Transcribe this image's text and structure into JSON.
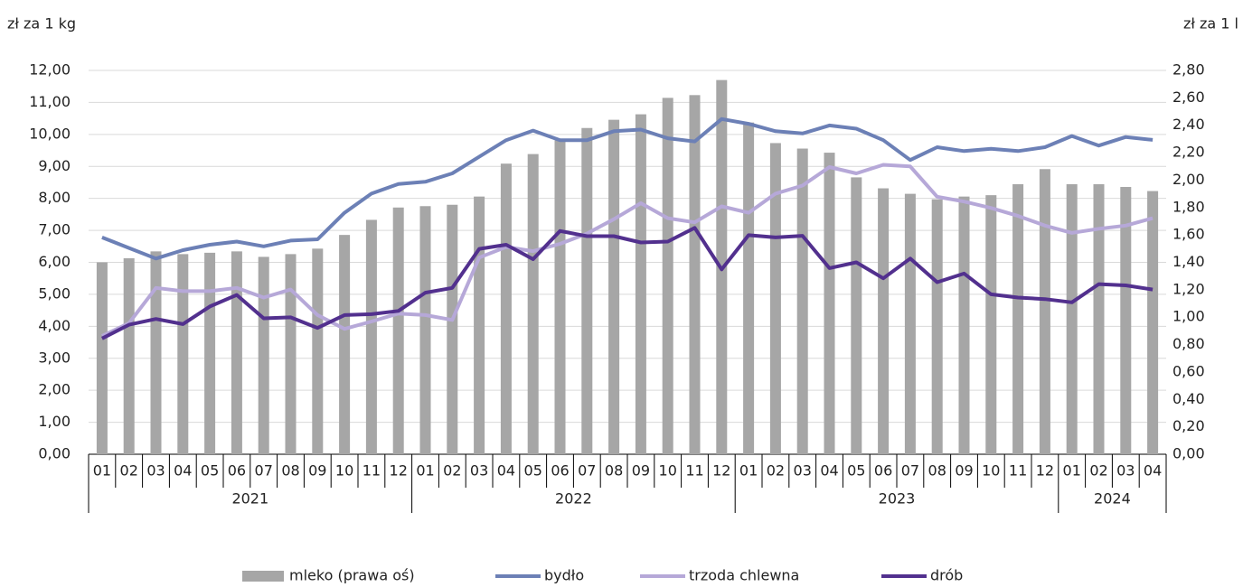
{
  "chart_data": {
    "type": "bar",
    "y_label": "zł za 1 kg",
    "y2_label": "zł za 1 l",
    "categories": [
      "01",
      "02",
      "03",
      "04",
      "05",
      "06",
      "07",
      "08",
      "09",
      "10",
      "11",
      "12",
      "01",
      "02",
      "03",
      "04",
      "05",
      "06",
      "07",
      "08",
      "09",
      "10",
      "11",
      "12",
      "01",
      "02",
      "03",
      "04",
      "05",
      "06",
      "07",
      "08",
      "09",
      "10",
      "11",
      "12",
      "01",
      "02",
      "03",
      "04"
    ],
    "years": [
      "2021",
      "2022",
      "2023",
      "2024"
    ],
    "ylim": [
      0,
      12
    ],
    "yticks": [
      {
        "value": 0,
        "label": "0,00"
      },
      {
        "value": 1,
        "label": "1,00"
      },
      {
        "value": 2,
        "label": "2,00"
      },
      {
        "value": 3,
        "label": "3,00"
      },
      {
        "value": 4,
        "label": "4,00"
      },
      {
        "value": 5,
        "label": "5,00"
      },
      {
        "value": 6,
        "label": "6,00"
      },
      {
        "value": 7,
        "label": "7,00"
      },
      {
        "value": 8,
        "label": "8,00"
      },
      {
        "value": 9,
        "label": "9,00"
      },
      {
        "value": 10,
        "label": "10,00"
      },
      {
        "value": 11,
        "label": "11,00"
      },
      {
        "value": 12,
        "label": "12,00"
      }
    ],
    "y2lim": [
      0,
      2.8
    ],
    "y2ticks": [
      {
        "value": 0,
        "label": "0,00"
      },
      {
        "value": 0.2,
        "label": "0,20"
      },
      {
        "value": 0.4,
        "label": "0,40"
      },
      {
        "value": 0.6,
        "label": "0,60"
      },
      {
        "value": 0.8,
        "label": "0,80"
      },
      {
        "value": 1,
        "label": "1,00"
      },
      {
        "value": 1.2,
        "label": "1,20"
      },
      {
        "value": 1.4,
        "label": "1,40"
      },
      {
        "value": 1.6,
        "label": "1,60"
      },
      {
        "value": 1.8,
        "label": "1,80"
      },
      {
        "value": 2,
        "label": "2,00"
      },
      {
        "value": 2.2,
        "label": "2,20"
      },
      {
        "value": 2.4,
        "label": "2,40"
      },
      {
        "value": 2.6,
        "label": "2,60"
      },
      {
        "value": 2.8,
        "label": "2,80"
      }
    ],
    "grid": true,
    "legend": "bottom",
    "series": [
      {
        "name": "mleko (prawa oś)",
        "type": "bar",
        "axis": "y2",
        "color": "#a6a6a6",
        "values": [
          1.4,
          1.43,
          1.48,
          1.46,
          1.47,
          1.48,
          1.44,
          1.46,
          1.5,
          1.6,
          1.71,
          1.8,
          1.81,
          1.82,
          1.88,
          2.12,
          2.19,
          2.29,
          2.38,
          2.44,
          2.48,
          2.6,
          2.62,
          2.73,
          2.42,
          2.27,
          2.23,
          2.2,
          2.02,
          1.94,
          1.9,
          1.86,
          1.88,
          1.89,
          1.97,
          2.08,
          1.97,
          1.97,
          1.95,
          1.92
        ]
      },
      {
        "name": "bydło",
        "type": "line",
        "color": "#6c80b6",
        "values": [
          6.78,
          6.45,
          6.12,
          6.38,
          6.55,
          6.65,
          6.5,
          6.68,
          6.72,
          7.55,
          8.15,
          8.45,
          8.52,
          8.78,
          9.3,
          9.82,
          10.12,
          9.82,
          9.82,
          10.1,
          10.15,
          9.88,
          9.78,
          10.48,
          10.33,
          10.1,
          10.03,
          10.28,
          10.18,
          9.82,
          9.2,
          9.6,
          9.48,
          9.55,
          9.48,
          9.6,
          9.95,
          9.65,
          9.92,
          9.83
        ]
      },
      {
        "name": "trzoda chlewna",
        "type": "line",
        "color": "#b6a8d8",
        "values": [
          3.7,
          4.1,
          5.2,
          5.1,
          5.1,
          5.2,
          4.9,
          5.15,
          4.35,
          3.92,
          4.15,
          4.4,
          4.35,
          4.2,
          6.15,
          6.48,
          6.35,
          6.58,
          6.9,
          7.35,
          7.85,
          7.38,
          7.25,
          7.75,
          7.55,
          8.15,
          8.4,
          8.98,
          8.78,
          9.05,
          9.0,
          8.05,
          7.9,
          7.7,
          7.45,
          7.15,
          6.92,
          7.05,
          7.15,
          7.38
        ]
      },
      {
        "name": "drób",
        "type": "line",
        "color": "#52308e",
        "values": [
          3.62,
          4.05,
          4.23,
          4.07,
          4.62,
          4.98,
          4.25,
          4.28,
          3.95,
          4.35,
          4.38,
          4.48,
          5.05,
          5.2,
          6.42,
          6.55,
          6.1,
          6.98,
          6.82,
          6.82,
          6.62,
          6.65,
          7.08,
          5.78,
          6.85,
          6.78,
          6.83,
          5.82,
          6.0,
          5.5,
          6.12,
          5.38,
          5.65,
          5.0,
          4.9,
          4.85,
          4.75,
          5.32,
          5.28,
          5.15
        ]
      }
    ]
  }
}
